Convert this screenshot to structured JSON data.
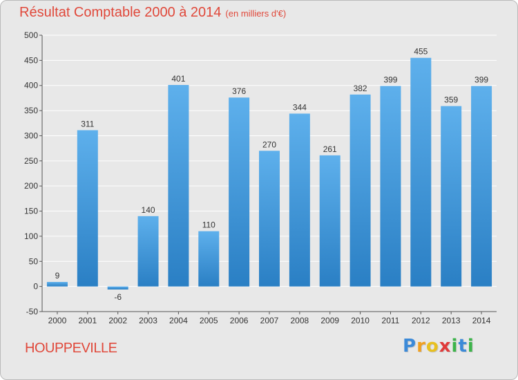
{
  "header": {
    "title": "Résultat Comptable 2000 à 2014",
    "subtitle": "(en milliers d'€)"
  },
  "footer": {
    "city": "HOUPPEVILLE",
    "logo_text": "Proxiti"
  },
  "colors": {
    "title": "#e0483a",
    "bar_top": "#5eb0ec",
    "bar_bottom": "#2a7fc4",
    "background": "#e8e8e8",
    "grid": "#ffffff"
  },
  "chart_data": {
    "type": "bar",
    "title": "Résultat Comptable 2000 à 2014",
    "subtitle": "(en milliers d'€)",
    "xlabel": "",
    "ylabel": "",
    "categories": [
      "2000",
      "2001",
      "2002",
      "2003",
      "2004",
      "2005",
      "2006",
      "2007",
      "2008",
      "2009",
      "2010",
      "2011",
      "2012",
      "2013",
      "2014"
    ],
    "values": [
      9,
      311,
      -6,
      140,
      401,
      110,
      376,
      270,
      344,
      261,
      382,
      399,
      455,
      359,
      399
    ],
    "ylim": [
      -50,
      500
    ],
    "yticks": [
      -50,
      0,
      50,
      100,
      150,
      200,
      250,
      300,
      350,
      400,
      450,
      500
    ],
    "grid": true,
    "legend": "none"
  }
}
